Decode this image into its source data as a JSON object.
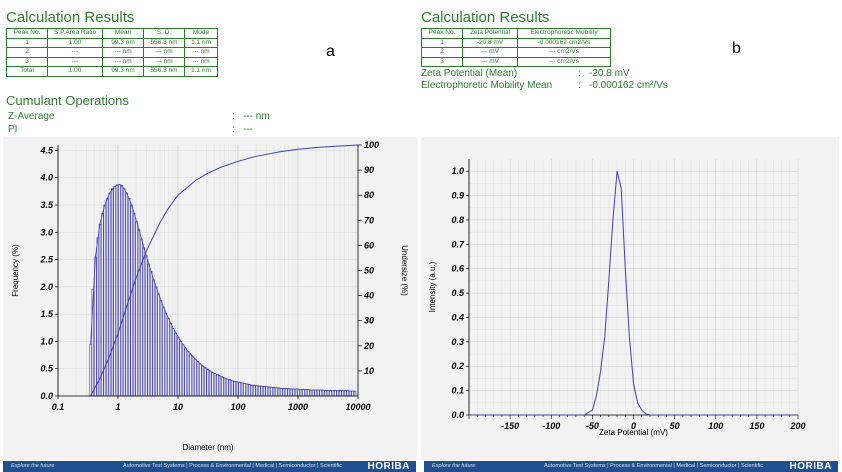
{
  "panel_a": {
    "heading": "Calculation Results",
    "letter": "a",
    "table": {
      "headers": [
        "Peak No.",
        "S.P.Area Ratio",
        "Mean",
        "S. D.",
        "Mode"
      ],
      "rows": [
        [
          "1",
          "1.00",
          "99.3 nm",
          "556.3 nm",
          "1.1 nm"
        ],
        [
          "2",
          "---",
          "--- nm",
          "--- nm",
          "--- nm"
        ],
        [
          "3",
          "---",
          "--- nm",
          "--- nm",
          "--- nm"
        ],
        [
          "Total",
          "1.00",
          "99.3 nm",
          "556.3 nm",
          "1.1 nm"
        ]
      ]
    },
    "cumulant": {
      "heading": "Cumulant Operations",
      "zavg_label": "Z-Average",
      "zavg_sep": ":",
      "zavg_value": "--- nm",
      "pi_label": "PI",
      "pi_sep": ":",
      "pi_value": "---"
    }
  },
  "panel_b": {
    "heading": "Calculation Results",
    "letter": "b",
    "table": {
      "headers": [
        "Peak No.",
        "Zeta Potential",
        "Electrophoretic Mobility"
      ],
      "rows": [
        [
          "1",
          "-20.8 mV",
          "-0.000162 cm2/Vs"
        ],
        [
          "2",
          "--- mV",
          "--- cm2/Vs"
        ],
        [
          "3",
          "--- mV",
          "--- cm2/Vs"
        ]
      ]
    },
    "zeta_mean_label": "Zeta Potential (Mean)",
    "zeta_mean_sep": ":",
    "zeta_mean_value": "-20.8 mV",
    "mobility_label": "Electrophoretic Mobility Mean",
    "mobility_sep": ":",
    "mobility_value": "-0.000162 cm²/Vs"
  },
  "footer": {
    "tagline": "Explore the future",
    "links": "Automotive Test Systems  |  Process & Environmental  |  Medical  |  Semiconductor  |  Scientific",
    "brand": "HORIBA"
  },
  "colors": {
    "green_text": "#2e7d32",
    "plot_line": "#3f3fae",
    "plot_bg": "#f2f2f2",
    "footer_bg": "#1f4f8f"
  },
  "chart_data": [
    {
      "type": "bar",
      "xscale": "log",
      "xlabel": "Diameter (nm)",
      "ylabel": "Frequency (%)",
      "y2label": "Undersize (%)",
      "xlim": [
        0.1,
        10000
      ],
      "ylim": [
        0,
        4.6
      ],
      "y2lim": [
        0,
        100
      ],
      "xticks": [
        "0.1",
        "1",
        "10",
        "100",
        "1000",
        "10000"
      ],
      "yticks": [
        "0.0",
        "0.5",
        "1.0",
        "1.5",
        "2.0",
        "2.5",
        "3.0",
        "3.5",
        "4.0",
        "4.5"
      ],
      "y2ticks": [
        "10",
        "20",
        "30",
        "40",
        "50",
        "60",
        "70",
        "80",
        "90",
        "100"
      ],
      "grid": true,
      "frequency": {
        "x": [
          0.35,
          0.38,
          0.42,
          0.46,
          0.5,
          0.55,
          0.6,
          0.66,
          0.73,
          0.8,
          0.88,
          0.96,
          1.06,
          1.16,
          1.27,
          1.4,
          1.54,
          1.69,
          1.86,
          2.04,
          2.24,
          2.46,
          2.7,
          2.97,
          3.26,
          3.58,
          3.94,
          4.33,
          4.75,
          5.22,
          5.74,
          6.3,
          6.93,
          7.61,
          8.36,
          9.19,
          10.1,
          11.1,
          12.2,
          13.4,
          14.7,
          16.2,
          17.8,
          19.5,
          21.5,
          23.6,
          25.9,
          28.5,
          31.3,
          34.4,
          37.8,
          41.5,
          45.6,
          50.1,
          55.1,
          60.5,
          66.5,
          73.1,
          80.3,
          88.2,
          96.9,
          106.5,
          117,
          128.6,
          141.3,
          155.3,
          170.6,
          187.5,
          206,
          226.4,
          248.7,
          273.3,
          300.3,
          330,
          362.6,
          398.4,
          437.8,
          481,
          528.6,
          580.8,
          638.2,
          701.3,
          770.6,
          846.7,
          930.4,
          1022,
          1123,
          1234,
          1356,
          1490,
          1637,
          1799,
          1977,
          2172,
          2387,
          2623,
          2882,
          3167,
          3480,
          3824,
          4202,
          4617,
          5073,
          5575,
          6126,
          6731,
          7396,
          8127,
          8930
        ],
        "values": [
          0.95,
          1.95,
          2.55,
          2.9,
          3.15,
          3.35,
          3.5,
          3.62,
          3.72,
          3.8,
          3.84,
          3.87,
          3.88,
          3.86,
          3.8,
          3.72,
          3.62,
          3.5,
          3.35,
          3.2,
          3.05,
          2.88,
          2.72,
          2.57,
          2.42,
          2.28,
          2.13,
          2.0,
          1.87,
          1.75,
          1.63,
          1.52,
          1.42,
          1.33,
          1.24,
          1.15,
          1.08,
          1.0,
          0.94,
          0.88,
          0.82,
          0.77,
          0.72,
          0.67,
          0.63,
          0.59,
          0.55,
          0.52,
          0.49,
          0.46,
          0.43,
          0.41,
          0.39,
          0.37,
          0.35,
          0.33,
          0.31,
          0.3,
          0.28,
          0.27,
          0.26,
          0.25,
          0.24,
          0.23,
          0.22,
          0.21,
          0.2,
          0.2,
          0.19,
          0.18,
          0.18,
          0.17,
          0.17,
          0.16,
          0.16,
          0.15,
          0.15,
          0.15,
          0.14,
          0.14,
          0.14,
          0.13,
          0.13,
          0.13,
          0.13,
          0.12,
          0.12,
          0.12,
          0.12,
          0.12,
          0.11,
          0.11,
          0.11,
          0.11,
          0.11,
          0.11,
          0.1,
          0.1,
          0.1,
          0.1,
          0.1,
          0.1,
          0.1,
          0.1,
          0.1,
          0.1,
          0.09,
          0.09,
          0.09
        ]
      },
      "frequency_curve": {
        "x": [
          0.35,
          0.42,
          0.5,
          0.6,
          0.73,
          0.88,
          1.06,
          1.27,
          1.54,
          1.86,
          2.24,
          2.7,
          3.26,
          3.94,
          4.75,
          5.74,
          6.93,
          8.36,
          10.1,
          12.2,
          14.7,
          17.8,
          21.5,
          25.9,
          31.3,
          37.8,
          45.6,
          55.1,
          66.5,
          80.3,
          96.9,
          117,
          141.3,
          170.6,
          206,
          248.7,
          300.3,
          362.6,
          437.8,
          528.6,
          638.2,
          770.6,
          930.4,
          1123,
          1356,
          1637,
          1977,
          2387,
          2882,
          3480,
          4202,
          5073,
          6126,
          7396,
          8930
        ],
        "values": [
          0.95,
          2.55,
          3.15,
          3.5,
          3.72,
          3.84,
          3.88,
          3.8,
          3.62,
          3.35,
          3.05,
          2.72,
          2.42,
          2.13,
          1.87,
          1.63,
          1.42,
          1.24,
          1.08,
          0.94,
          0.82,
          0.72,
          0.63,
          0.55,
          0.49,
          0.43,
          0.39,
          0.35,
          0.31,
          0.28,
          0.26,
          0.24,
          0.22,
          0.2,
          0.19,
          0.18,
          0.17,
          0.16,
          0.15,
          0.14,
          0.14,
          0.13,
          0.13,
          0.12,
          0.12,
          0.11,
          0.11,
          0.11,
          0.1,
          0.1,
          0.1,
          0.1,
          0.1,
          0.09,
          0.09
        ]
      },
      "undersize": {
        "x": [
          0.35,
          0.5,
          0.7,
          1.0,
          1.5,
          2.0,
          3.0,
          5.0,
          7.0,
          10,
          20,
          30,
          50,
          100,
          200,
          500,
          1000,
          2000,
          5000,
          10000
        ],
        "values": [
          0,
          7,
          15,
          25,
          38,
          47,
          58,
          69,
          75,
          80,
          86,
          88.5,
          91,
          93.5,
          95.5,
          97.3,
          98.3,
          99,
          99.6,
          100
        ]
      }
    },
    {
      "type": "line",
      "xlabel": "Zeta Potential (mV)",
      "ylabel": "Intensity (a.u.)",
      "xlim": [
        -200,
        200
      ],
      "ylim": [
        0,
        1.05
      ],
      "xticks": [
        "-150",
        "-100",
        "-50",
        "0",
        "50",
        "100",
        "150",
        "200"
      ],
      "yticks": [
        "0.0",
        "0.1",
        "0.2",
        "0.3",
        "0.4",
        "0.5",
        "0.6",
        "0.7",
        "0.8",
        "0.9",
        "1.0"
      ],
      "grid": true,
      "x": [
        -200,
        -60,
        -50,
        -45,
        -40,
        -35,
        -30,
        -25,
        -20,
        -15,
        -10,
        -5,
        0,
        5,
        10,
        15,
        20,
        200
      ],
      "values": [
        0,
        0,
        0.02,
        0.08,
        0.18,
        0.32,
        0.55,
        0.8,
        1.0,
        0.93,
        0.6,
        0.32,
        0.13,
        0.05,
        0.02,
        0.005,
        0,
        0
      ]
    }
  ]
}
